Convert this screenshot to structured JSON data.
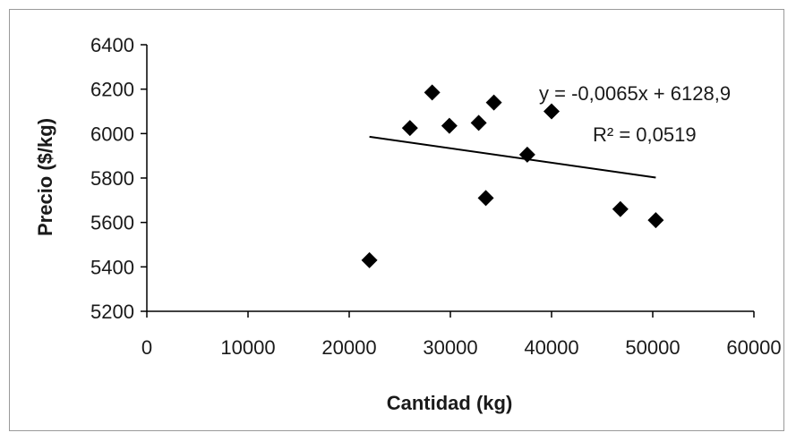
{
  "chart_data": {
    "type": "scatter",
    "xlabel": "Cantidad (kg)",
    "ylabel": "Precio ($/kg)",
    "xlim": [
      0,
      60000
    ],
    "ylim": [
      5200,
      6400
    ],
    "x_ticks": [
      0,
      10000,
      20000,
      30000,
      40000,
      50000,
      60000
    ],
    "y_ticks": [
      5200,
      5400,
      5600,
      5800,
      6000,
      6200,
      6400
    ],
    "grid": false,
    "legend": "none",
    "marker": "diamond",
    "marker_color": "#000000",
    "points": [
      {
        "x": 22000,
        "y": 5430
      },
      {
        "x": 26000,
        "y": 6025
      },
      {
        "x": 28200,
        "y": 6185
      },
      {
        "x": 29900,
        "y": 6035
      },
      {
        "x": 32800,
        "y": 6048
      },
      {
        "x": 33500,
        "y": 5710
      },
      {
        "x": 34300,
        "y": 6140
      },
      {
        "x": 37600,
        "y": 5905
      },
      {
        "x": 40000,
        "y": 6100
      },
      {
        "x": 46800,
        "y": 5660
      },
      {
        "x": 50300,
        "y": 5610
      }
    ],
    "trendline": {
      "x_start": 22000,
      "x_end": 50300,
      "slope": -0.0065,
      "intercept": 6128.9,
      "equation": "y = -0,0065x + 6128,9",
      "r_squared": "R² = 0,0519"
    }
  }
}
